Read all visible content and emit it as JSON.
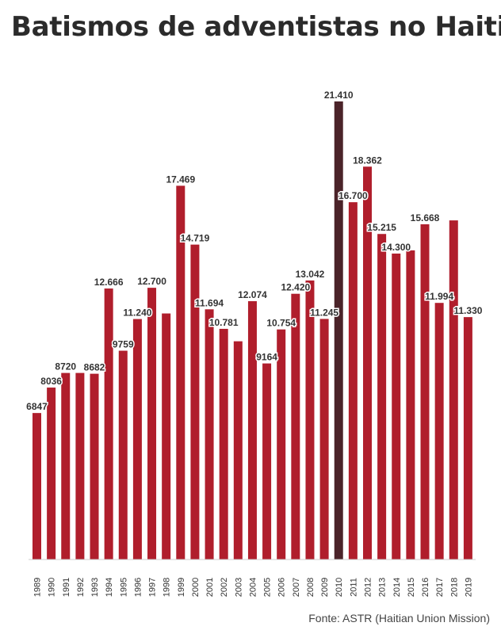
{
  "chart_data": {
    "type": "bar",
    "title": "Batismos de adventistas no Haiti",
    "source": "Fonte: ASTR (Haitian Union Mission)",
    "xlabel": "",
    "ylabel": "",
    "ylim": [
      0,
      22000
    ],
    "grid": false,
    "legend": "none",
    "bar_color": "#B01E2C",
    "highlight_color": "#4B2329",
    "highlight_category": "2010",
    "categories": [
      "1989",
      "1990",
      "1991",
      "1992",
      "1993",
      "1994",
      "1995",
      "1996",
      "1997",
      "1998",
      "1999",
      "2000",
      "2001",
      "2002",
      "2003",
      "2004",
      "2005",
      "2006",
      "2007",
      "2008",
      "2009",
      "2010",
      "2011",
      "2012",
      "2013",
      "2014",
      "2015",
      "2016",
      "2017",
      "2018",
      "2019"
    ],
    "values": [
      6847,
      8036,
      8720,
      8720,
      8682,
      12666,
      9759,
      11240,
      12700,
      11500,
      17469,
      14719,
      11694,
      10781,
      10200,
      12074,
      9164,
      10754,
      12420,
      13042,
      11245,
      21410,
      16700,
      18362,
      15215,
      14300,
      14450,
      15668,
      11994,
      15850,
      11330
    ],
    "data_labels": [
      "6847",
      "8036",
      "8720",
      "",
      "8682",
      "12.666",
      "9759",
      "11.240",
      "12.700",
      "",
      "17.469",
      "14.719",
      "11.694",
      "10.781",
      "",
      "12.074",
      "9164",
      "10.754",
      "12.420",
      "13.042",
      "11.245",
      "21.410",
      "16.700",
      "18.362",
      "15.215",
      "14.300",
      "",
      "15.668",
      "11.994",
      "",
      "11.330"
    ]
  }
}
